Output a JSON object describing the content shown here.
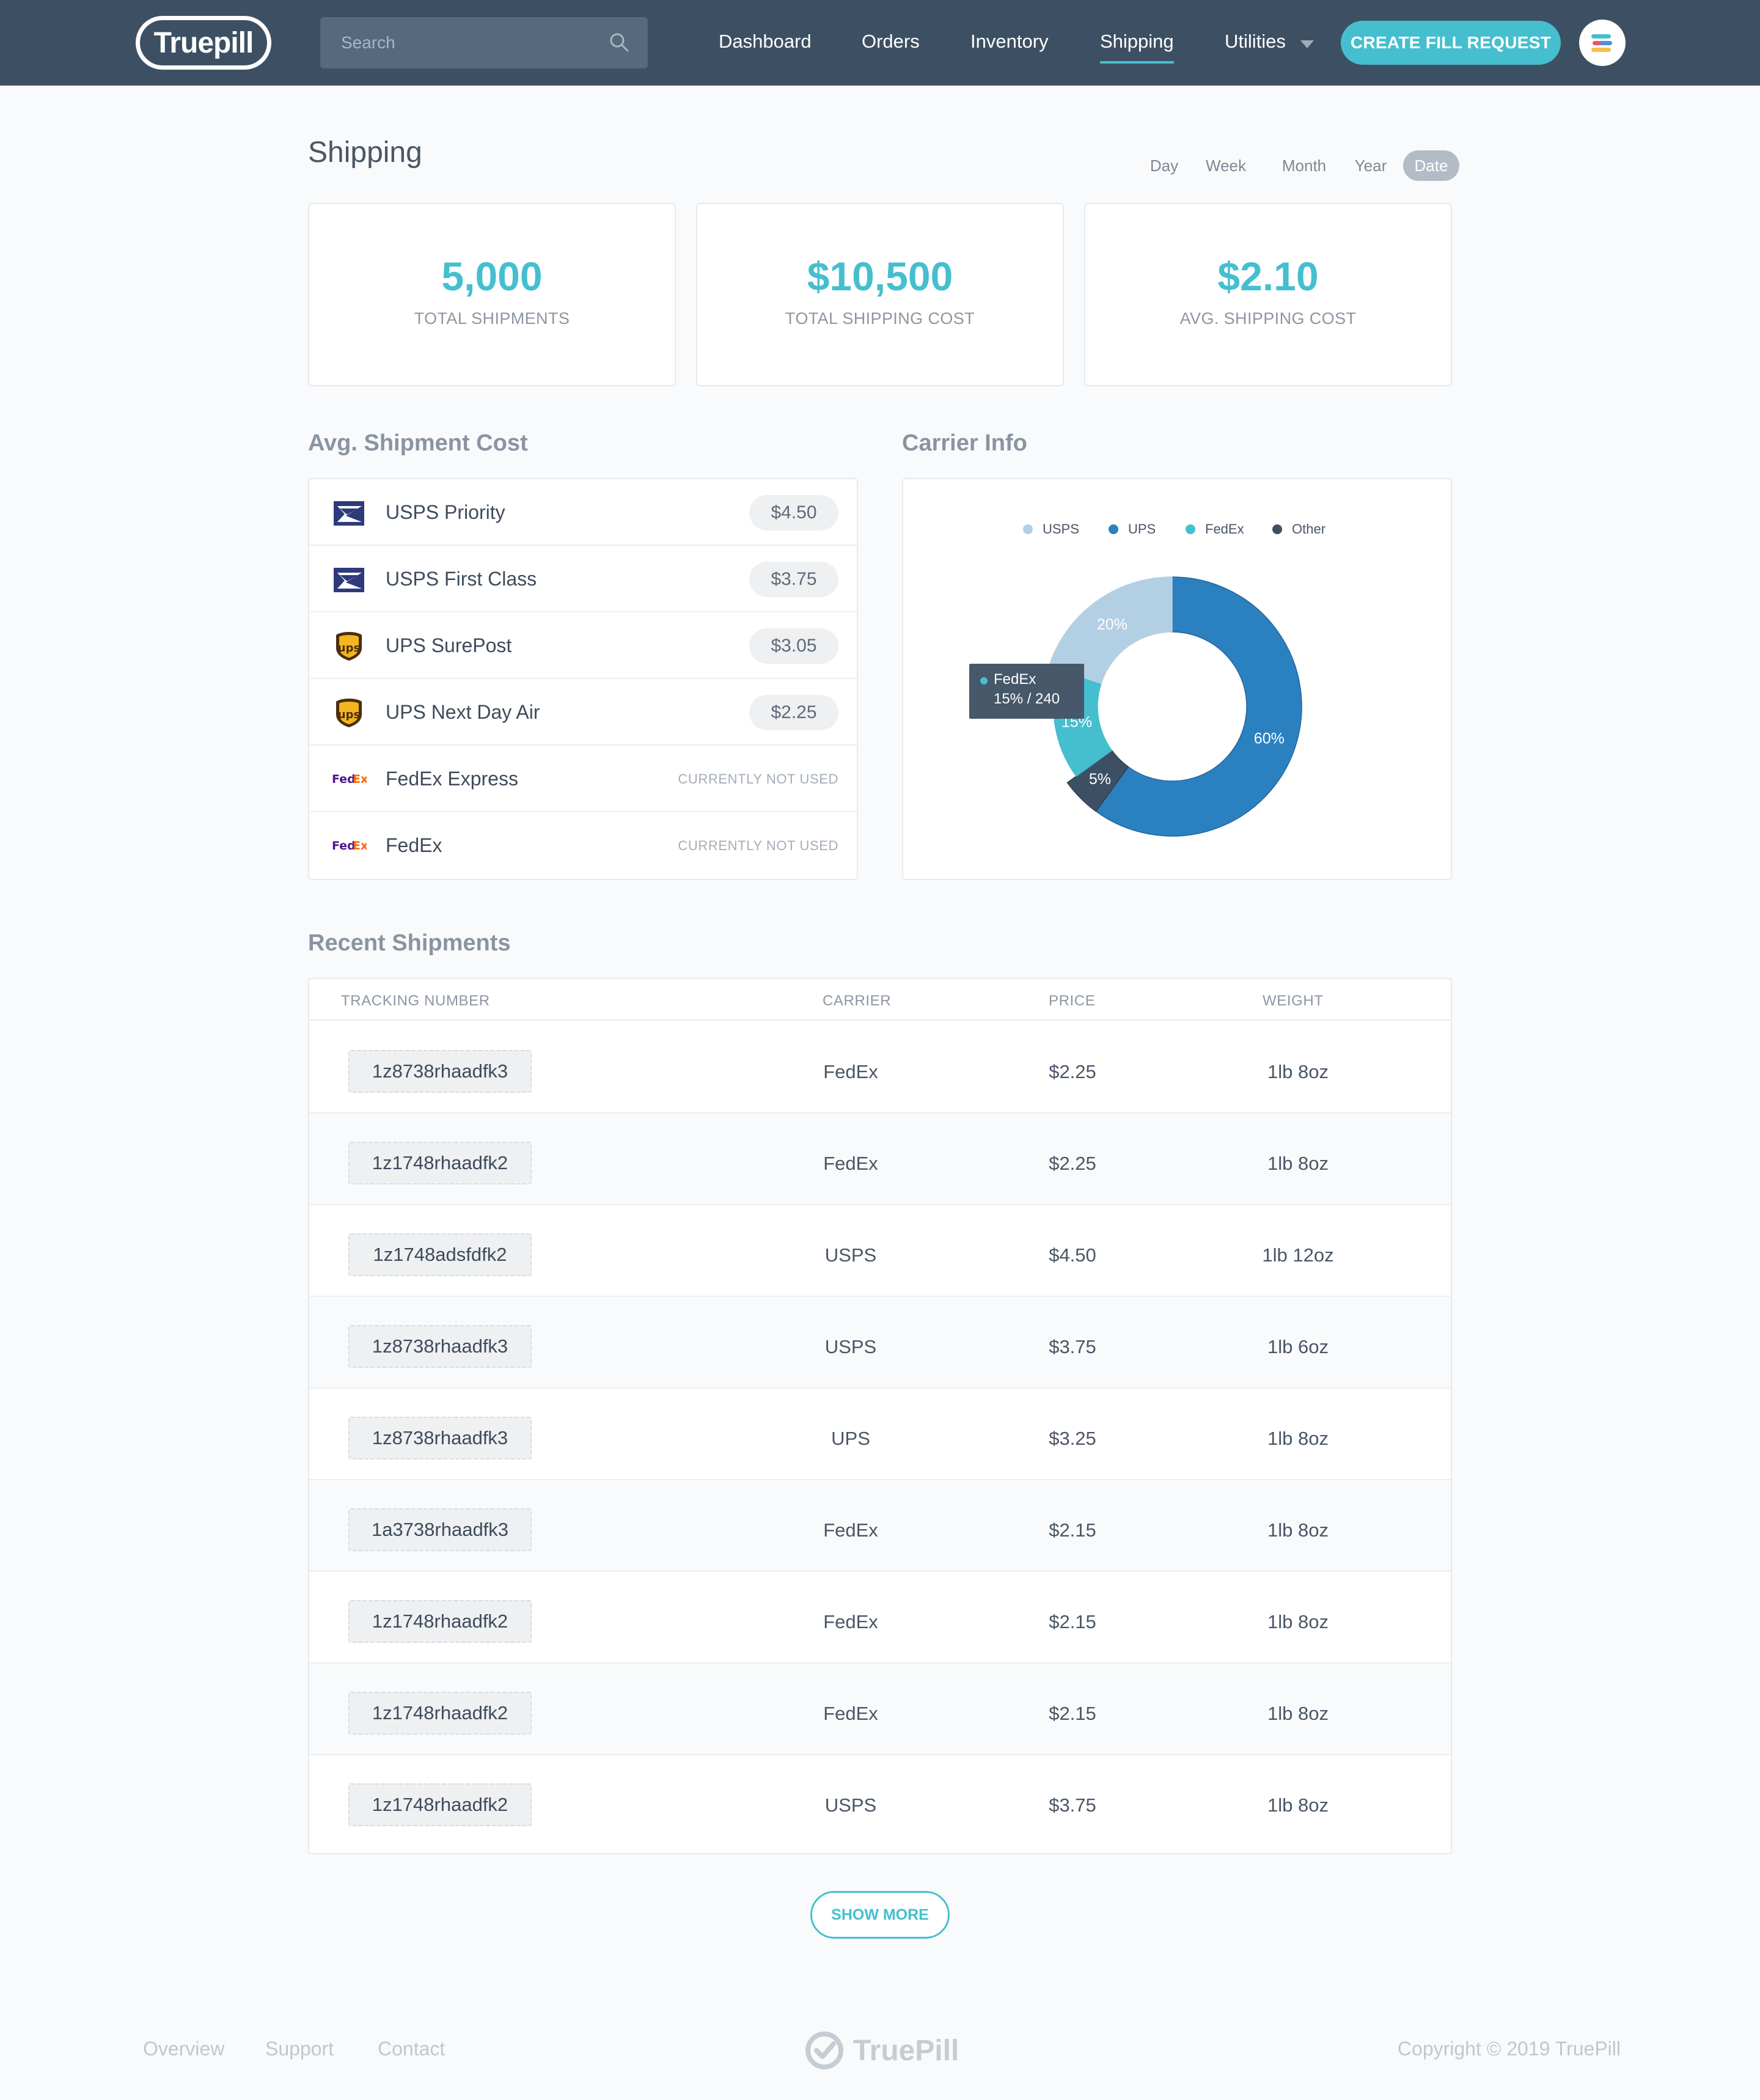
{
  "nav": {
    "logo": "Truepill",
    "search_placeholder": "Search",
    "links": [
      "Dashboard",
      "Orders",
      "Inventory",
      "Shipping",
      "Utilities"
    ],
    "active_link": "Shipping",
    "cta": "CREATE FILL REQUEST"
  },
  "page": {
    "title": "Shipping",
    "ranges": [
      "Day",
      "Week",
      "Month",
      "Year",
      "Date"
    ],
    "active_range": "Date"
  },
  "kpis": [
    {
      "value": "5,000",
      "label": "TOTAL SHIPMENTS"
    },
    {
      "value": "$10,500",
      "label": "TOTAL SHIPPING COST"
    },
    {
      "value": "$2.10",
      "label": "AVG. SHIPPING COST"
    }
  ],
  "avg_cost": {
    "title": "Avg. Shipment Cost",
    "rows": [
      {
        "icon": "usps-icon",
        "name": "USPS Priority",
        "price": "$4.50"
      },
      {
        "icon": "usps-icon",
        "name": "USPS First Class",
        "price": "$3.75"
      },
      {
        "icon": "ups-icon",
        "name": "UPS SurePost",
        "price": "$3.05"
      },
      {
        "icon": "ups-icon",
        "name": "UPS Next Day Air",
        "price": "$2.25"
      },
      {
        "icon": "fedex-icon",
        "name": "FedEx Express",
        "price": "CURRENTLY NOT USED"
      },
      {
        "icon": "fedex-icon",
        "name": "FedEx",
        "price": "CURRENTLY NOT USED"
      }
    ]
  },
  "carrier_info": {
    "title": "Carrier Info",
    "tooltip": {
      "name": "FedEx",
      "value": "15% / 240"
    }
  },
  "chart_data": {
    "type": "pie",
    "donut": true,
    "categories": [
      "USPS",
      "UPS",
      "FedEx",
      "Other"
    ],
    "values": [
      20,
      60,
      15,
      5
    ],
    "labels": [
      "20%",
      "60%",
      "15%",
      "5%"
    ],
    "colors": [
      "#b3cfe3",
      "#2b80c0",
      "#45bfcf",
      "#3d5063"
    ],
    "legend_position": "top"
  },
  "recent": {
    "title": "Recent Shipments",
    "columns": [
      "TRACKING NUMBER",
      "CARRIER",
      "PRICE",
      "WEIGHT"
    ],
    "rows": [
      [
        "1z8738rhaadfk3",
        "FedEx",
        "$2.25",
        "1lb 8oz"
      ],
      [
        "1z1748rhaadfk2",
        "FedEx",
        "$2.25",
        "1lb 8oz"
      ],
      [
        "1z1748adsfdfk2",
        "USPS",
        "$4.50",
        "1lb 12oz"
      ],
      [
        "1z8738rhaadfk3",
        "USPS",
        "$3.75",
        "1lb 6oz"
      ],
      [
        "1z8738rhaadfk3",
        "UPS",
        "$3.25",
        "1lb 8oz"
      ],
      [
        "1a3738rhaadfk3",
        "FedEx",
        "$2.15",
        "1lb 8oz"
      ],
      [
        "1z1748rhaadfk2",
        "FedEx",
        "$2.15",
        "1lb 8oz"
      ],
      [
        "1z1748rhaadfk2",
        "FedEx",
        "$2.15",
        "1lb 8oz"
      ],
      [
        "1z1748rhaadfk2",
        "USPS",
        "$3.75",
        "1lb 8oz"
      ]
    ],
    "show_more": "SHOW MORE"
  },
  "footer": {
    "links": [
      "Overview",
      "Support",
      "Contact"
    ],
    "logo": "TruePill",
    "copyright": "Copyright © 2019 TruePill"
  },
  "colors": {
    "accent": "#45bfcf",
    "nav_bg": "#3d5063"
  }
}
